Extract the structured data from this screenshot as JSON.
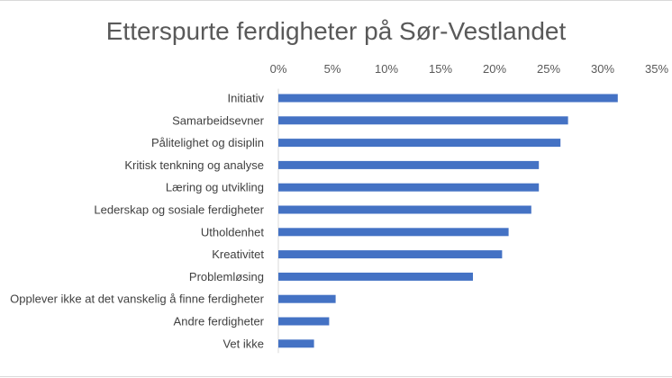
{
  "chart_data": {
    "type": "bar",
    "orientation": "horizontal",
    "title": "Etterspurte ferdigheter på Sør-Vestlandet",
    "xlabel": "",
    "ylabel": "",
    "xlim": [
      0,
      35
    ],
    "x_ticks": [
      "0%",
      "5%",
      "10%",
      "15%",
      "20%",
      "25%",
      "30%",
      "35%"
    ],
    "x_axis_position": "top",
    "grid": false,
    "legend": "none",
    "bar_color": "#4472c4",
    "categories": [
      "Initiativ",
      "Samarbeidsevner",
      "Pålitelighet og disiplin",
      "Kritisk tenkning og analyse",
      "Læring og utvikling",
      "Lederskap og sosiale ferdigheter",
      "Utholdenhet",
      "Kreativitet",
      "Problemløsing",
      "Opplever ikke at det vanskelig å finne ferdigheter",
      "Andre ferdigheter",
      "Vet ikke"
    ],
    "values": [
      31.4,
      26.8,
      26.1,
      24.1,
      24.1,
      23.4,
      21.3,
      20.7,
      18.0,
      5.3,
      4.7,
      3.3
    ]
  }
}
